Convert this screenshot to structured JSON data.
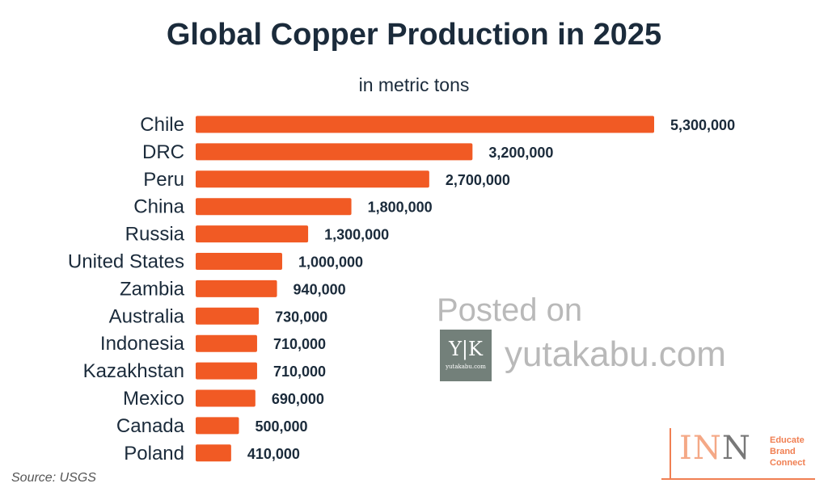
{
  "chart_data": {
    "type": "bar",
    "orientation": "horizontal",
    "title": "Global Copper Production in 2025",
    "subtitle": "in metric tons",
    "categories": [
      "Chile",
      "DRC",
      "Peru",
      "China",
      "Russia",
      "United States",
      "Zambia",
      "Australia",
      "Indonesia",
      "Kazakhstan",
      "Mexico",
      "Canada",
      "Poland"
    ],
    "values": [
      5300000,
      3200000,
      2700000,
      1800000,
      1300000,
      1000000,
      940000,
      730000,
      710000,
      710000,
      690000,
      500000,
      410000
    ],
    "value_labels": [
      "5,300,000",
      "3,200,000",
      "2,700,000",
      "1,800,000",
      "1,300,000",
      "1,000,000",
      "940,000",
      "730,000",
      "710,000",
      "710,000",
      "690,000",
      "500,000",
      "410,000"
    ],
    "xlim": [
      0,
      5300000
    ],
    "grid": false,
    "bar_color": "#f15a24",
    "source": "Source: USGS"
  },
  "colors": {
    "title": "#1b2b3b",
    "bar": "#f15a24",
    "watermark": "#b9b9b9",
    "brand": "#f07f52"
  },
  "watermark": {
    "posted_on": "Posted on",
    "logo_mark": "Y|K",
    "logo_caption": "yutakabu.com",
    "site": "yutakabu.com"
  },
  "brand_logo": {
    "letters": [
      "I",
      "N",
      "N"
    ],
    "tagline": [
      "Educate",
      "Brand",
      "Connect"
    ]
  }
}
